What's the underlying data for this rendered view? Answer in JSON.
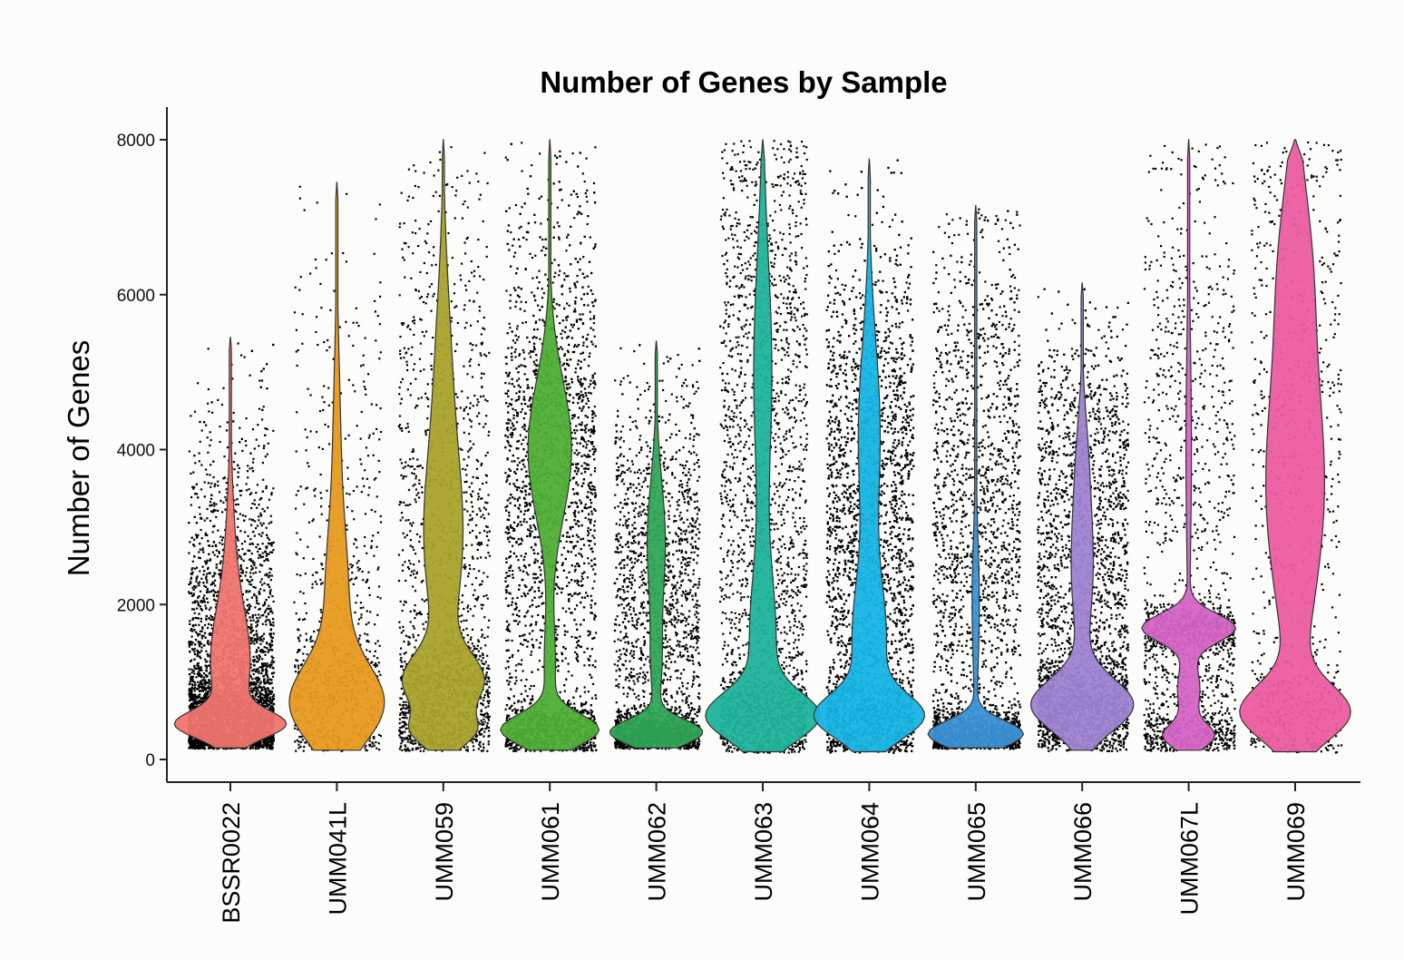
{
  "chart_data": {
    "type": "violin",
    "title": "Number of Genes by Sample",
    "xlabel": "",
    "ylabel": "Number of Genes",
    "ylim": [
      0,
      8000
    ],
    "yticks": [
      0,
      2000,
      4000,
      6000,
      8000
    ],
    "grid": false,
    "legend": "none",
    "categories": [
      "BSSR0022",
      "UMM041L",
      "UMM059",
      "UMM061",
      "UMM062",
      "UMM063",
      "UMM064",
      "UMM065",
      "UMM066",
      "UMM067L",
      "UMM069"
    ],
    "series": [
      {
        "category": "BSSR0022",
        "color": "#f0746e",
        "min": 150,
        "max": 5450,
        "mode": 450,
        "approx_points": 9000
      },
      {
        "category": "UMM041L",
        "color": "#e79a1d",
        "min": 120,
        "max": 7450,
        "mode": 750,
        "approx_points": 1500
      },
      {
        "category": "UMM059",
        "color": "#a9a22a",
        "min": 120,
        "max": 8000,
        "mode": 1000,
        "approx_points": 3500
      },
      {
        "category": "UMM061",
        "color": "#4eae35",
        "min": 120,
        "max": 8000,
        "mode": 400,
        "approx_points": 7000
      },
      {
        "category": "UMM062",
        "color": "#2fa655",
        "min": 150,
        "max": 5400,
        "mode": 350,
        "approx_points": 5500
      },
      {
        "category": "UMM063",
        "color": "#1fb39a",
        "min": 100,
        "max": 8000,
        "mode": 500,
        "approx_points": 4500
      },
      {
        "category": "UMM064",
        "color": "#16b4e5",
        "min": 100,
        "max": 7750,
        "mode": 550,
        "approx_points": 9000
      },
      {
        "category": "UMM065",
        "color": "#3c93d6",
        "min": 150,
        "max": 7150,
        "mode": 350,
        "approx_points": 7000
      },
      {
        "category": "UMM066",
        "color": "#9e82d2",
        "min": 120,
        "max": 6150,
        "mode": 700,
        "approx_points": 7500
      },
      {
        "category": "UMM067L",
        "color": "#d564c5",
        "min": 120,
        "max": 8000,
        "mode": 1700,
        "approx_points": 3500
      },
      {
        "category": "UMM069",
        "color": "#ec5ca0",
        "min": 100,
        "max": 8000,
        "mode": 600,
        "approx_points": 1500
      }
    ]
  }
}
